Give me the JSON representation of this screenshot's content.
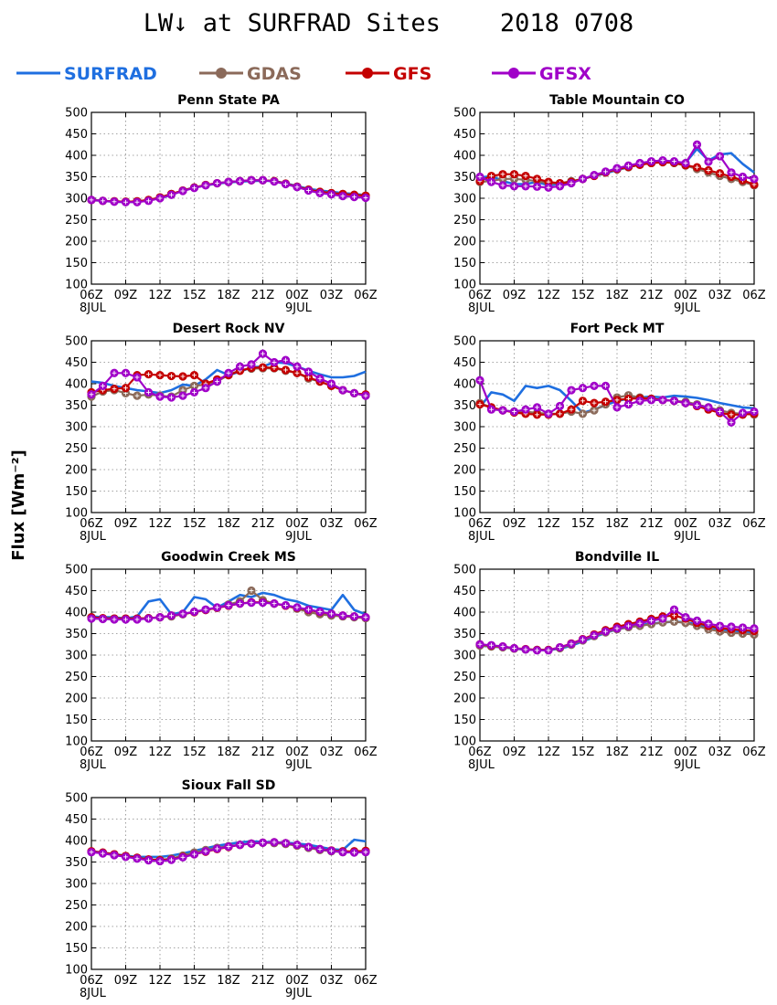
{
  "title": "LW↓ at SURFRAD Sites    2018 0708",
  "ylabel": "Flux [Wm⁻²]",
  "legend": [
    {
      "name": "SURFRAD",
      "color": "#1f6fe0",
      "marker": "none"
    },
    {
      "name": "GDAS",
      "color": "#8b6a5a",
      "marker": "circle"
    },
    {
      "name": "GFS",
      "color": "#c40000",
      "marker": "circle"
    },
    {
      "name": "GFSX",
      "color": "#a000c8",
      "marker": "circle"
    }
  ],
  "x_ticks": [
    "06Z",
    "09Z",
    "12Z",
    "15Z",
    "18Z",
    "21Z",
    "00Z",
    "03Z",
    "06Z"
  ],
  "x_sublabels": [
    {
      "tick": 0,
      "text": "8JUL"
    },
    {
      "tick": 6,
      "text": "9JUL"
    }
  ],
  "chart_data": [
    {
      "type": "line",
      "title": "Penn State PA",
      "x": [
        6,
        7,
        8,
        9,
        10,
        11,
        12,
        13,
        14,
        15,
        16,
        17,
        18,
        19,
        20,
        21,
        22,
        23,
        24,
        25,
        26,
        27,
        28,
        29,
        30
      ],
      "xlabel": "",
      "ylabel": "Flux [Wm⁻²]",
      "ylim": [
        100,
        500
      ],
      "grid": true,
      "series": [
        {
          "name": "SURFRAD",
          "values": [
            296,
            294,
            292,
            291,
            292,
            296,
            300,
            308,
            318,
            325,
            330,
            334,
            337,
            339,
            340,
            341,
            340,
            335,
            328,
            322,
            318,
            315,
            312,
            310,
            307
          ]
        },
        {
          "name": "GDAS",
          "values": [
            296,
            294,
            293,
            292,
            293,
            296,
            302,
            310,
            318,
            325,
            331,
            335,
            338,
            340,
            342,
            342,
            340,
            334,
            327,
            320,
            315,
            312,
            310,
            308,
            306
          ]
        },
        {
          "name": "GFS",
          "values": [
            296,
            294,
            293,
            292,
            293,
            296,
            302,
            310,
            318,
            325,
            331,
            335,
            338,
            340,
            342,
            342,
            340,
            334,
            327,
            320,
            315,
            312,
            310,
            308,
            306
          ]
        },
        {
          "name": "GFSX",
          "values": [
            296,
            294,
            292,
            291,
            291,
            294,
            300,
            308,
            317,
            324,
            330,
            335,
            338,
            340,
            342,
            342,
            339,
            333,
            326,
            318,
            312,
            309,
            305,
            303,
            301
          ]
        }
      ]
    },
    {
      "type": "line",
      "title": "Table Mountain CO",
      "x": [
        6,
        7,
        8,
        9,
        10,
        11,
        12,
        13,
        14,
        15,
        16,
        17,
        18,
        19,
        20,
        21,
        22,
        23,
        24,
        25,
        26,
        27,
        28,
        29,
        30
      ],
      "xlabel": "",
      "ylabel": "Flux [Wm⁻²]",
      "ylim": [
        100,
        500
      ],
      "grid": true,
      "series": [
        {
          "name": "SURFRAD",
          "values": [
            348,
            352,
            340,
            333,
            333,
            338,
            330,
            334,
            338,
            345,
            352,
            358,
            366,
            372,
            380,
            385,
            388,
            384,
            383,
            415,
            388,
            402,
            405,
            380,
            360
          ]
        },
        {
          "name": "GDAS",
          "values": [
            338,
            340,
            345,
            345,
            343,
            340,
            335,
            335,
            340,
            345,
            353,
            360,
            367,
            372,
            378,
            382,
            384,
            382,
            376,
            368,
            360,
            352,
            345,
            338,
            330
          ]
        },
        {
          "name": "GFS",
          "values": [
            340,
            352,
            356,
            356,
            352,
            345,
            338,
            335,
            338,
            345,
            352,
            360,
            368,
            373,
            378,
            382,
            384,
            383,
            377,
            372,
            365,
            358,
            350,
            342,
            332
          ]
        },
        {
          "name": "GFSX",
          "values": [
            350,
            338,
            330,
            328,
            328,
            327,
            325,
            328,
            335,
            345,
            354,
            362,
            370,
            376,
            382,
            386,
            388,
            386,
            382,
            425,
            385,
            398,
            360,
            350,
            345
          ]
        }
      ]
    },
    {
      "type": "line",
      "title": "Desert Rock NV",
      "x": [
        6,
        7,
        8,
        9,
        10,
        11,
        12,
        13,
        14,
        15,
        16,
        17,
        18,
        19,
        20,
        21,
        22,
        23,
        24,
        25,
        26,
        27,
        28,
        29,
        30
      ],
      "xlabel": "",
      "ylabel": "Flux [Wm⁻²]",
      "ylim": [
        100,
        500
      ],
      "grid": true,
      "series": [
        {
          "name": "SURFRAD",
          "values": [
            405,
            402,
            395,
            390,
            385,
            382,
            378,
            385,
            398,
            395,
            410,
            432,
            420,
            428,
            438,
            440,
            450,
            448,
            440,
            430,
            422,
            415,
            415,
            418,
            428
          ]
        },
        {
          "name": "GDAS",
          "values": [
            370,
            382,
            385,
            378,
            372,
            375,
            372,
            370,
            385,
            395,
            398,
            405,
            420,
            432,
            435,
            436,
            436,
            430,
            425,
            412,
            405,
            395,
            385,
            378,
            372
          ]
        },
        {
          "name": "GFS",
          "values": [
            380,
            385,
            388,
            390,
            420,
            422,
            420,
            418,
            417,
            420,
            400,
            410,
            420,
            430,
            437,
            438,
            437,
            432,
            425,
            415,
            405,
            395,
            385,
            378,
            375
          ]
        },
        {
          "name": "GFSX",
          "values": [
            375,
            395,
            425,
            425,
            415,
            380,
            370,
            368,
            372,
            380,
            390,
            405,
            425,
            440,
            445,
            470,
            450,
            455,
            440,
            428,
            412,
            400,
            385,
            378,
            372
          ]
        }
      ]
    },
    {
      "type": "line",
      "title": "Fort Peck MT",
      "x": [
        6,
        7,
        8,
        9,
        10,
        11,
        12,
        13,
        14,
        15,
        16,
        17,
        18,
        19,
        20,
        21,
        22,
        23,
        24,
        25,
        26,
        27,
        28,
        29,
        30
      ],
      "xlabel": "",
      "ylabel": "Flux [Wm⁻²]",
      "ylim": [
        100,
        500
      ],
      "grid": true,
      "series": [
        {
          "name": "SURFRAD",
          "values": [
            345,
            380,
            375,
            360,
            395,
            390,
            395,
            385,
            360,
            332,
            340,
            350,
            360,
            365,
            368,
            370,
            368,
            372,
            370,
            367,
            362,
            355,
            350,
            345,
            343
          ]
        },
        {
          "name": "GDAS",
          "values": [
            355,
            345,
            338,
            335,
            335,
            332,
            330,
            330,
            335,
            330,
            338,
            352,
            368,
            373,
            368,
            365,
            362,
            360,
            358,
            352,
            345,
            338,
            332,
            330,
            328
          ]
        },
        {
          "name": "GFS",
          "values": [
            352,
            345,
            338,
            333,
            330,
            328,
            328,
            330,
            340,
            360,
            355,
            358,
            362,
            365,
            366,
            365,
            362,
            360,
            355,
            348,
            340,
            332,
            328,
            328,
            330
          ]
        },
        {
          "name": "GFSX",
          "values": [
            408,
            340,
            338,
            335,
            340,
            345,
            330,
            348,
            385,
            390,
            395,
            395,
            345,
            352,
            360,
            362,
            362,
            360,
            355,
            350,
            345,
            335,
            310,
            332,
            335
          ]
        }
      ]
    },
    {
      "type": "line",
      "title": "Goodwin Creek MS",
      "x": [
        6,
        7,
        8,
        9,
        10,
        11,
        12,
        13,
        14,
        15,
        16,
        17,
        18,
        19,
        20,
        21,
        22,
        23,
        24,
        25,
        26,
        27,
        28,
        29,
        30
      ],
      "xlabel": "",
      "ylabel": "Flux [Wm⁻²]",
      "ylim": [
        100,
        500
      ],
      "grid": true,
      "series": [
        {
          "name": "SURFRAD",
          "values": [
            390,
            388,
            388,
            385,
            390,
            425,
            430,
            395,
            400,
            435,
            430,
            410,
            425,
            440,
            435,
            445,
            440,
            430,
            425,
            415,
            410,
            405,
            440,
            405,
            395
          ]
        },
        {
          "name": "GDAS",
          "values": [
            388,
            385,
            385,
            385,
            385,
            386,
            388,
            390,
            395,
            400,
            405,
            410,
            418,
            425,
            450,
            428,
            420,
            415,
            408,
            400,
            395,
            392,
            390,
            388,
            386
          ]
        },
        {
          "name": "GFS",
          "values": [
            388,
            386,
            385,
            385,
            385,
            386,
            388,
            392,
            396,
            400,
            405,
            410,
            415,
            420,
            423,
            423,
            420,
            415,
            410,
            405,
            400,
            396,
            392,
            390,
            388
          ]
        },
        {
          "name": "GFSX",
          "values": [
            385,
            384,
            383,
            383,
            383,
            385,
            388,
            392,
            396,
            401,
            406,
            411,
            416,
            420,
            422,
            422,
            420,
            416,
            411,
            406,
            401,
            396,
            392,
            390,
            388
          ]
        }
      ]
    },
    {
      "type": "line",
      "title": "Bondville IL",
      "x": [
        6,
        7,
        8,
        9,
        10,
        11,
        12,
        13,
        14,
        15,
        16,
        17,
        18,
        19,
        20,
        21,
        22,
        23,
        24,
        25,
        26,
        27,
        28,
        29,
        30
      ],
      "xlabel": "",
      "ylabel": "Flux [Wm⁻²]",
      "ylim": [
        100,
        500
      ],
      "grid": true,
      "series": [
        {
          "name": "SURFRAD",
          "values": [
            322,
            320,
            318,
            315,
            313,
            312,
            312,
            315,
            322,
            332,
            342,
            352,
            360,
            365,
            370,
            373,
            376,
            378,
            376,
            372,
            365,
            360,
            357,
            355,
            353
          ]
        },
        {
          "name": "GDAS",
          "values": [
            322,
            320,
            318,
            315,
            313,
            312,
            312,
            316,
            324,
            334,
            344,
            353,
            360,
            365,
            368,
            372,
            376,
            378,
            375,
            368,
            360,
            355,
            352,
            350,
            348
          ]
        },
        {
          "name": "GFS",
          "values": [
            325,
            322,
            320,
            316,
            314,
            312,
            312,
            318,
            327,
            337,
            348,
            358,
            366,
            372,
            378,
            384,
            390,
            392,
            385,
            375,
            368,
            363,
            360,
            358,
            356
          ]
        },
        {
          "name": "GFSX",
          "values": [
            325,
            323,
            320,
            316,
            313,
            311,
            311,
            318,
            326,
            336,
            346,
            355,
            362,
            368,
            374,
            380,
            385,
            406,
            388,
            380,
            373,
            368,
            366,
            364,
            362
          ]
        }
      ]
    },
    {
      "type": "line",
      "title": "Sioux Fall SD",
      "x": [
        6,
        7,
        8,
        9,
        10,
        11,
        12,
        13,
        14,
        15,
        16,
        17,
        18,
        19,
        20,
        21,
        22,
        23,
        24,
        25,
        26,
        27,
        28,
        29,
        30
      ],
      "xlabel": "",
      "ylabel": "Flux [Wm⁻²]",
      "ylim": [
        100,
        500
      ],
      "grid": true,
      "series": [
        {
          "name": "SURFRAD",
          "values": [
            375,
            372,
            368,
            365,
            362,
            362,
            362,
            365,
            370,
            376,
            382,
            388,
            392,
            396,
            398,
            397,
            396,
            395,
            393,
            390,
            385,
            380,
            378,
            402,
            398
          ]
        },
        {
          "name": "GDAS",
          "values": [
            374,
            371,
            368,
            364,
            360,
            356,
            355,
            358,
            365,
            372,
            378,
            383,
            387,
            390,
            393,
            395,
            394,
            392,
            388,
            383,
            378,
            375,
            373,
            373,
            374
          ]
        },
        {
          "name": "GFS",
          "values": [
            375,
            372,
            368,
            364,
            360,
            356,
            354,
            356,
            362,
            368,
            374,
            380,
            385,
            390,
            393,
            395,
            396,
            394,
            390,
            385,
            380,
            377,
            375,
            375,
            376
          ]
        },
        {
          "name": "GFSX",
          "values": [
            373,
            370,
            366,
            362,
            358,
            354,
            352,
            355,
            361,
            368,
            375,
            381,
            386,
            390,
            393,
            395,
            396,
            394,
            390,
            385,
            380,
            376,
            373,
            372,
            373
          ]
        }
      ]
    }
  ]
}
